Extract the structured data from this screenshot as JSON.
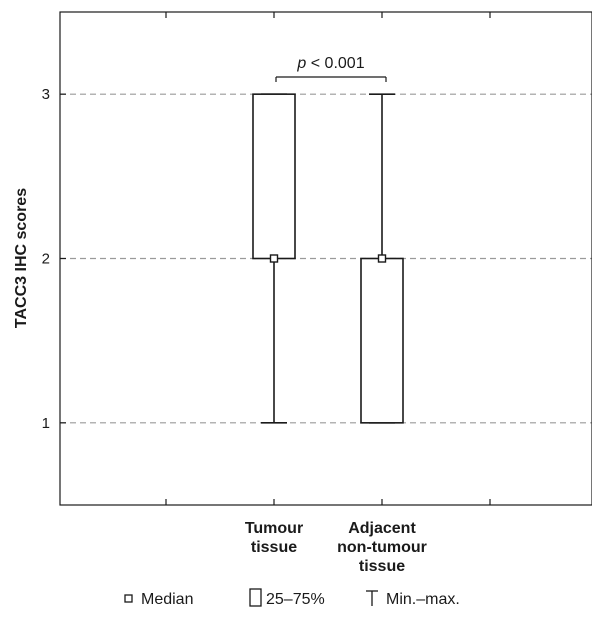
{
  "chart_data": {
    "type": "boxplot",
    "title": "",
    "xlabel": "",
    "ylabel": "TACC3 IHC scores",
    "ylim": [
      0.5,
      3.5
    ],
    "yticks": [
      1,
      2,
      3
    ],
    "grid": "dashed horizontal at y ticks",
    "categories": [
      {
        "lines": [
          "Tumour",
          "tissue"
        ]
      },
      {
        "lines": [
          "Adjacent",
          "non-tumour",
          "tissue"
        ]
      }
    ],
    "boxes": [
      {
        "median": 2,
        "q1": 2,
        "q3": 3,
        "min": 1,
        "max": 3
      },
      {
        "median": 2,
        "q1": 1,
        "q3": 2,
        "min": 1,
        "max": 3
      }
    ],
    "annotation": {
      "italic": "p",
      "rest": " < 0.001",
      "between": [
        0,
        1
      ]
    },
    "legend": {
      "placement": "bottom",
      "items": [
        {
          "symbol": "small-square",
          "label": "Median"
        },
        {
          "symbol": "box",
          "label": "25–75%"
        },
        {
          "symbol": "whisker",
          "label": "Min.–max."
        }
      ]
    }
  }
}
